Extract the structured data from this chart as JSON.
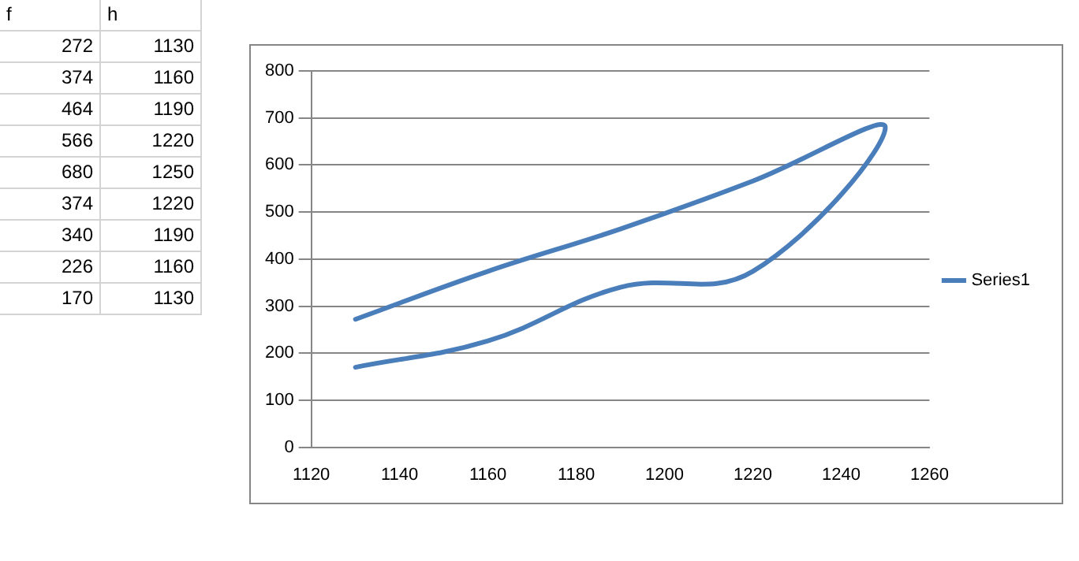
{
  "chart_data": [
    {
      "type": "other",
      "annotations": [
        "f",
        "h",
        "272",
        "1130",
        "374",
        "1160",
        "464",
        "1190",
        "566",
        "1220",
        "680",
        "1250",
        "374",
        "1220",
        "340",
        "1190",
        "226",
        "1160",
        "170",
        "1130"
      ]
    },
    {
      "type": "line",
      "x": [
        1130,
        1160,
        1190,
        1220,
        1250,
        1220,
        1190,
        1160,
        1130
      ],
      "series": [
        {
          "name": "Series1",
          "color": "#4a7ebb",
          "values": [
            272,
            374,
            464,
            566,
            680,
            374,
            340,
            226,
            170
          ]
        }
      ],
      "xlim": [
        1120,
        1260
      ],
      "xticks": [
        1120,
        1140,
        1160,
        1180,
        1200,
        1220,
        1240,
        1260
      ],
      "ylim": [
        0,
        800
      ],
      "yticks": [
        0,
        100,
        200,
        300,
        400,
        500,
        600,
        700,
        800
      ],
      "grid": "y",
      "legend": "right",
      "marker": "none",
      "line_style": "solid"
    }
  ]
}
